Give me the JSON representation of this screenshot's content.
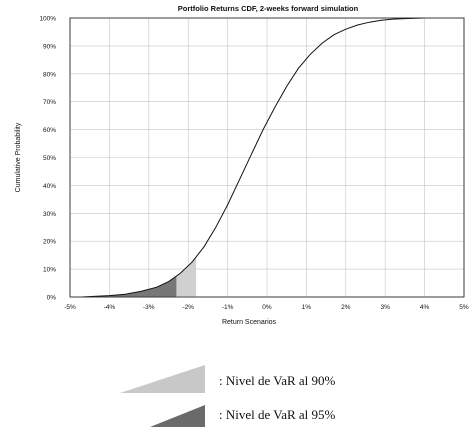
{
  "chart_data": {
    "type": "line",
    "title": "Portfolio Returns CDF, 2-weeks forward simulation",
    "xlabel": "Return Scenarios",
    "ylabel": "Cumulative Probability",
    "xlim": [
      -5,
      5
    ],
    "ylim": [
      0,
      100
    ],
    "grid": true,
    "x_ticks": [
      "-5%",
      "-4%",
      "-3%",
      "-2%",
      "-1%",
      "0%",
      "1%",
      "2%",
      "3%",
      "4%",
      "5%"
    ],
    "y_ticks": [
      "0%",
      "10%",
      "20%",
      "30%",
      "40%",
      "50%",
      "60%",
      "70%",
      "80%",
      "90%",
      "100%"
    ],
    "series": [
      {
        "x": [
          -4.7,
          -4.4,
          -4.0,
          -3.6,
          -3.2,
          -2.8,
          -2.5,
          -2.2,
          -1.9,
          -1.6,
          -1.3,
          -1.0,
          -0.7,
          -0.4,
          -0.1,
          0.2,
          0.5,
          0.8,
          1.1,
          1.4,
          1.7,
          2.0,
          2.3,
          2.6,
          2.9,
          3.2,
          3.5,
          3.8,
          4.0
        ],
        "y": [
          0.0,
          0.2,
          0.5,
          1.0,
          2.0,
          3.5,
          5.5,
          8.5,
          12.5,
          18.0,
          25.0,
          33.0,
          42.0,
          51.0,
          60.0,
          68.0,
          75.5,
          82.0,
          87.0,
          91.0,
          94.0,
          96.0,
          97.5,
          98.5,
          99.2,
          99.6,
          99.8,
          99.9,
          100.0
        ]
      }
    ],
    "var_regions": [
      {
        "level": 90,
        "x_from": -5.0,
        "x_to": -1.8,
        "color": "#d0d0d0"
      },
      {
        "level": 95,
        "x_from": -5.0,
        "x_to": -2.3,
        "color": "#777777"
      }
    ],
    "legend": [
      {
        "label": ": Nivel de VaR al 90%",
        "color": "#c8c8c8"
      },
      {
        "label": ": Nivel de VaR al 95%",
        "color": "#6a6a6a"
      }
    ]
  }
}
